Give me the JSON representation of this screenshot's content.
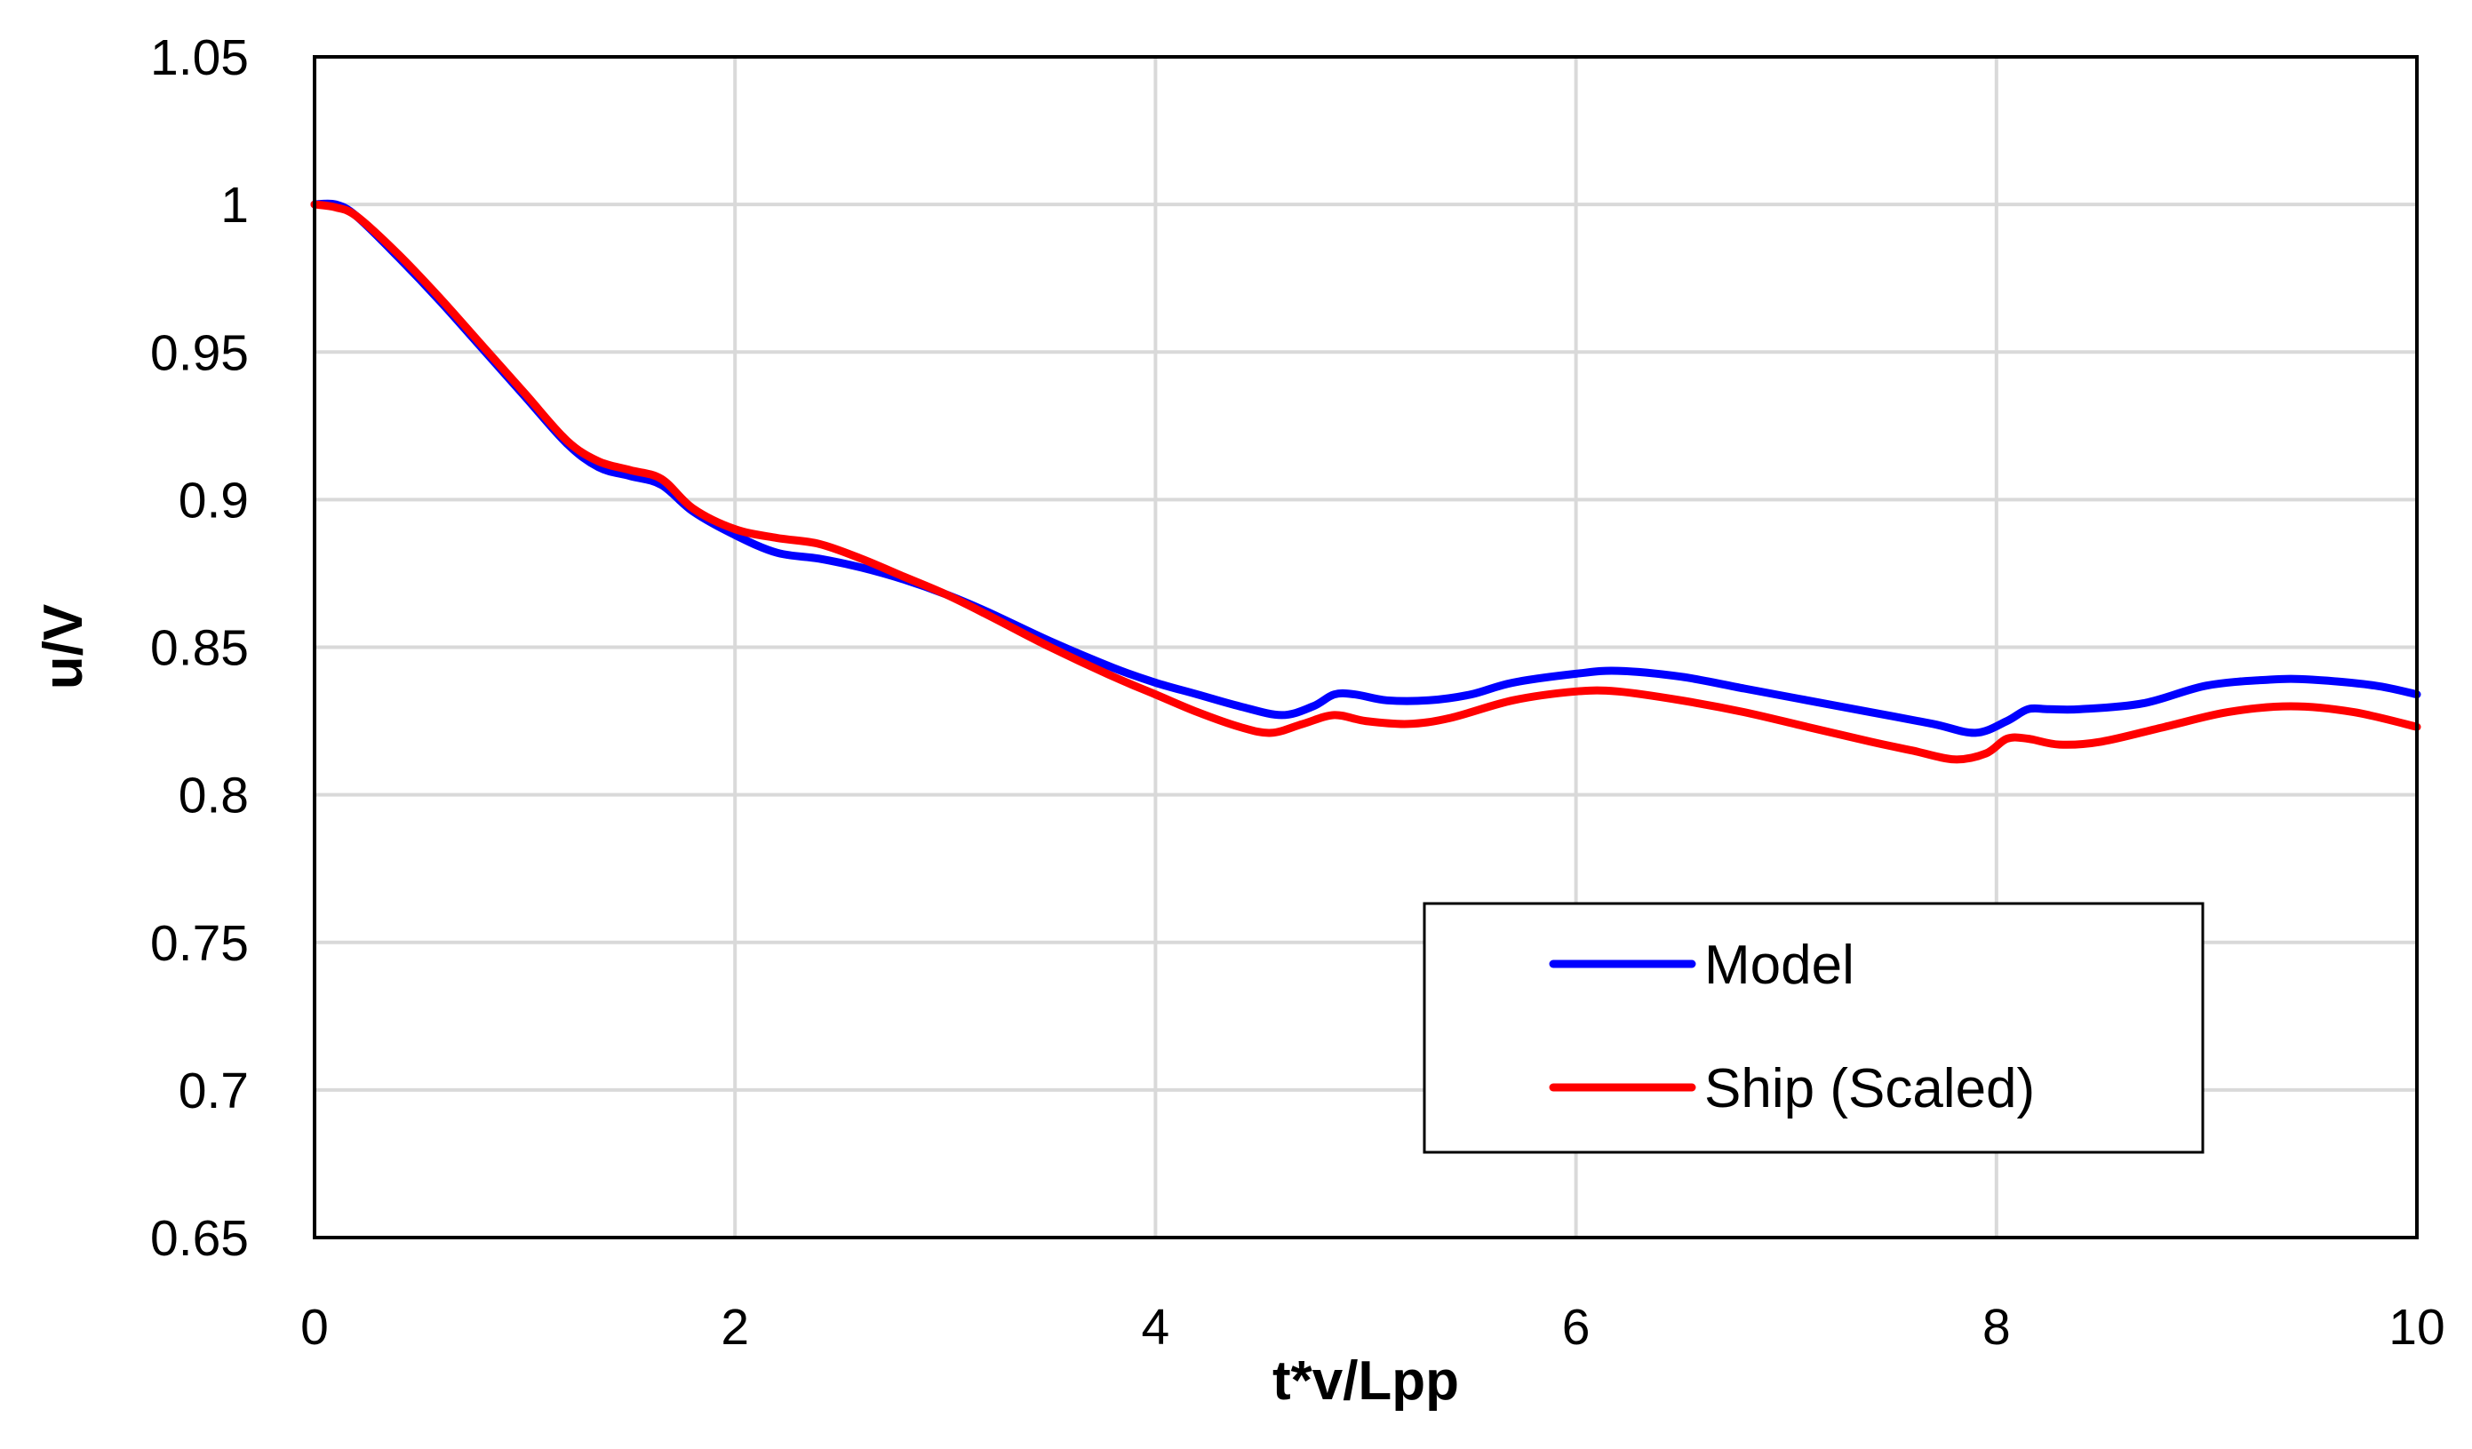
{
  "chart_data": {
    "type": "line",
    "title": "",
    "xlabel": "t*v/Lpp",
    "ylabel": "u/V",
    "xlim": [
      0,
      10
    ],
    "ylim": [
      0.65,
      1.05
    ],
    "x_ticks": [
      "0",
      "2",
      "4",
      "6",
      "8",
      "10"
    ],
    "y_ticks": [
      "0.65",
      "0.7",
      "0.75",
      "0.8",
      "0.85",
      "0.9",
      "0.95",
      "1",
      "1.05"
    ],
    "grid": true,
    "legend_position": "bottom-right",
    "series": [
      {
        "name": "Model",
        "color": "#0000ff",
        "x": [
          0,
          0.1,
          0.2,
          0.4,
          0.6,
          0.8,
          1.0,
          1.2,
          1.35,
          1.5,
          1.65,
          1.8,
          2.0,
          2.2,
          2.4,
          2.6,
          2.8,
          3.0,
          3.2,
          3.5,
          3.8,
          4.0,
          4.2,
          4.4,
          4.6,
          4.75,
          4.85,
          4.95,
          5.1,
          5.3,
          5.5,
          5.7,
          6.0,
          6.2,
          6.5,
          6.8,
          7.1,
          7.4,
          7.7,
          7.9,
          8.05,
          8.15,
          8.25,
          8.4,
          8.7,
          9.0,
          9.3,
          9.5,
          9.8,
          10.0
        ],
        "y": [
          1.0,
          1.0,
          0.996,
          0.982,
          0.967,
          0.951,
          0.935,
          0.919,
          0.911,
          0.908,
          0.905,
          0.896,
          0.888,
          0.882,
          0.88,
          0.877,
          0.873,
          0.868,
          0.862,
          0.852,
          0.843,
          0.838,
          0.834,
          0.83,
          0.827,
          0.83,
          0.834,
          0.834,
          0.832,
          0.832,
          0.834,
          0.838,
          0.841,
          0.842,
          0.84,
          0.836,
          0.832,
          0.828,
          0.824,
          0.821,
          0.825,
          0.829,
          0.829,
          0.829,
          0.831,
          0.837,
          0.839,
          0.839,
          0.837,
          0.834
        ]
      },
      {
        "name": "Ship (Scaled)",
        "color": "#ff0000",
        "x": [
          0,
          0.1,
          0.2,
          0.4,
          0.6,
          0.8,
          1.0,
          1.2,
          1.35,
          1.5,
          1.65,
          1.8,
          2.0,
          2.2,
          2.4,
          2.6,
          2.8,
          3.0,
          3.2,
          3.5,
          3.8,
          4.0,
          4.2,
          4.4,
          4.55,
          4.7,
          4.85,
          5.0,
          5.2,
          5.4,
          5.7,
          6.0,
          6.2,
          6.5,
          6.8,
          7.1,
          7.4,
          7.6,
          7.8,
          7.95,
          8.05,
          8.15,
          8.3,
          8.5,
          8.8,
          9.1,
          9.4,
          9.7,
          10.0
        ],
        "y": [
          1.0,
          0.999,
          0.996,
          0.983,
          0.968,
          0.952,
          0.936,
          0.92,
          0.913,
          0.91,
          0.907,
          0.897,
          0.89,
          0.887,
          0.885,
          0.88,
          0.874,
          0.868,
          0.861,
          0.85,
          0.84,
          0.834,
          0.828,
          0.823,
          0.821,
          0.824,
          0.827,
          0.825,
          0.824,
          0.826,
          0.832,
          0.835,
          0.835,
          0.832,
          0.828,
          0.823,
          0.818,
          0.815,
          0.812,
          0.814,
          0.819,
          0.819,
          0.817,
          0.818,
          0.823,
          0.828,
          0.83,
          0.828,
          0.823
        ]
      }
    ]
  }
}
